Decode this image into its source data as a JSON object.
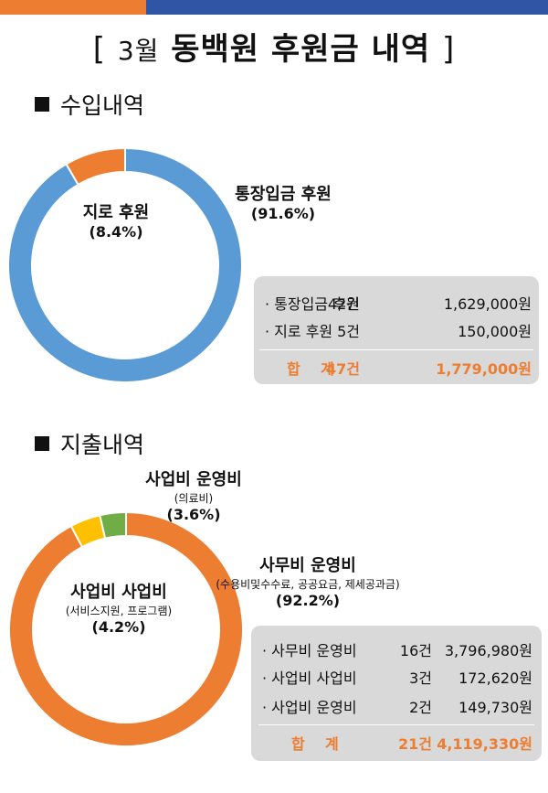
{
  "header": {
    "title_bracket_open": "[",
    "title_month": "3월",
    "title_main": "동백원 후원금 내역",
    "title_bracket_close": "]"
  },
  "income": {
    "section_title": "수입내역",
    "rows": [
      {
        "name": "· 통장입금 후원",
        "count": "42건",
        "amount": "1,629,000원"
      },
      {
        "name": "· 지로 후원",
        "count": "5건",
        "amount": "150,000원"
      }
    ],
    "total": {
      "name": "합    계",
      "count": "47건",
      "amount": "1,779,000원"
    }
  },
  "expense": {
    "section_title": "지출내역",
    "rows": [
      {
        "name": "· 사무비 운영비",
        "count": "16건",
        "amount": "3,796,980원"
      },
      {
        "name": "· 사업비 사업비",
        "count": "3건",
        "amount": "172,620원"
      },
      {
        "name": "· 사업비 운영비",
        "count": "2건",
        "amount": "149,730원"
      }
    ],
    "total": {
      "name": "합    계",
      "count": "21건",
      "amount": "4,119,330원"
    }
  },
  "chart_data": [
    {
      "type": "pie",
      "donut": true,
      "slices": [
        {
          "label": "통장입금 후원",
          "value": 91.6,
          "pct_label": "(91.6%)",
          "color": "#5B9BD5"
        },
        {
          "label": "지로 후원",
          "value": 8.4,
          "pct_label": "(8.4%)",
          "color": "#ED7D31"
        }
      ]
    },
    {
      "type": "pie",
      "donut": true,
      "slices": [
        {
          "label": "사무비 운영비",
          "sublabel": "(수용비및수수료, 공공요금, 제세공과금)",
          "value": 92.2,
          "pct_label": "(92.2%)",
          "color": "#ED7D31"
        },
        {
          "label": "사업비 사업비",
          "sublabel": "(서비스지원, 프로그램)",
          "value": 4.2,
          "pct_label": "(4.2%)",
          "color": "#FFC000"
        },
        {
          "label": "사업비 운영비",
          "sublabel": "(의료비)",
          "value": 3.6,
          "pct_label": "(3.6%)",
          "color": "#70AD47"
        }
      ]
    }
  ]
}
